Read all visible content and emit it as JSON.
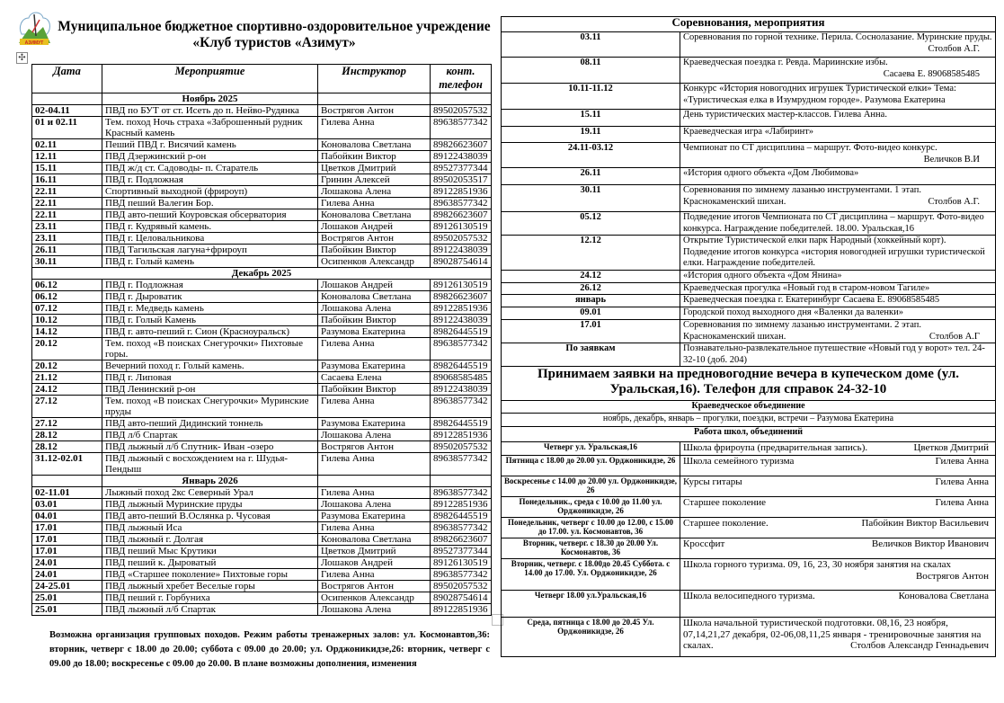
{
  "header": {
    "logo_text": "АЗИМУТ",
    "title_line1": "Муниципальное бюджетное спортивно-оздоровительное учреждение",
    "title_line2": "«Клуб туристов «Азимут»",
    "move_icon": "move-handle-icon"
  },
  "schedule": {
    "columns": [
      "Дата",
      "Мероприятие",
      "Инструктор",
      "конт. телефон"
    ],
    "rows": [
      {
        "month": "Ноябрь 2025"
      },
      {
        "date": "02-04.11",
        "event": "ПВД по БУТ от ст. Исеть до п. Нейво-Рудянка",
        "instructor": "Вострягов Антон",
        "phone": "89502057532"
      },
      {
        "date": "01 и 02.11",
        "event": "Тем. поход Ночь страха «Заброшенный рудник Красный камень",
        "instructor": "Гилева Анна",
        "phone": "89638577342"
      },
      {
        "date": "02.11",
        "event": "Пеший ПВД г. Висячий камень",
        "instructor": "Коновалова Светлана",
        "phone": "89826623607"
      },
      {
        "date": "12.11",
        "event": "ПВД Дзержинский р-он",
        "instructor": "Пабойкин Виктор",
        "phone": "89122438039"
      },
      {
        "date": "15.11",
        "event": "ПВД ж/д ст. Садоводы- п. Старатель",
        "instructor": "Цветков Дмитрий",
        "phone": "89527377344"
      },
      {
        "date": "16.11",
        "event": "ПВД г. Подложная",
        "instructor": "Гринин Алексей",
        "phone": "89502053517"
      },
      {
        "date": "22.11",
        "event": "Спортивный выходной (фрироуп)",
        "instructor": "Лошакова Алена",
        "phone": "89122851936"
      },
      {
        "date": "22.11",
        "event": "ПВД пеший Валегин Бор.",
        "instructor": "Гилева Анна",
        "phone": "89638577342"
      },
      {
        "date": "22.11",
        "event": "ПВД авто-пеший Коуровская обсерватория",
        "instructor": "Коновалова Светлана",
        "phone": "89826623607"
      },
      {
        "date": "23.11",
        "event": "ПВД г. Кудрявый камень.",
        "instructor": "Лошаков Андрей",
        "phone": "89126130519"
      },
      {
        "date": "23.11",
        "event": "ПВД г. Целовальникова",
        "instructor": "Вострягов Антон",
        "phone": "89502057532"
      },
      {
        "date": "26.11",
        "event": "ПВД Тагильская лагуна+фрироуп",
        "instructor": "Пабойкин Виктор",
        "phone": "89122438039"
      },
      {
        "date": "30.11",
        "event": "ПВД г. Голый камень",
        "instructor": "Осипенков Александр",
        "phone": "89028754614"
      },
      {
        "month": "Декабрь 2025",
        "full": true
      },
      {
        "date": "06.12",
        "event": "ПВД г. Подложная",
        "instructor": "Лошаков Андрей",
        "phone": "89126130519"
      },
      {
        "date": "06.12",
        "event": "ПВД г. Дыроватик",
        "instructor": "Коновалова Светлана",
        "phone": "89826623607"
      },
      {
        "date": "07.12",
        "event": "ПВД г. Медведь камень",
        "instructor": "Лошакова Алена",
        "phone": "89122851936"
      },
      {
        "date": "10.12",
        "event": "ПВД г. Голый Камень",
        "instructor": "Пабойкин Виктор",
        "phone": "89122438039"
      },
      {
        "date": "14.12",
        "event": "ПВД г.  авто-пеший г. Сион (Красноуральск)",
        "instructor": "Разумова Екатерина",
        "phone": "89826445519"
      },
      {
        "date": "20.12",
        "event": "Тем. поход «В поисках Снегурочки» Пихтовые горы.",
        "instructor": "Гилева Анна",
        "phone": "89638577342"
      },
      {
        "date": "20.12",
        "event": "Вечерний поход г. Голый камень.",
        "instructor": "Разумова Екатерина",
        "phone": "89826445519"
      },
      {
        "date": "21.12",
        "event": "ПВД г. Липовая",
        "instructor": "Сасаева Елена",
        "phone": "89068585485"
      },
      {
        "date": "24.12",
        "event": "ПВД Ленинский р-он",
        "instructor": "Пабойкин Виктор",
        "phone": "89122438039"
      },
      {
        "date": "27.12",
        "event": "Тем. поход «В поисках Снегурочки» Муринские пруды",
        "instructor": "Гилева Анна",
        "phone": "89638577342"
      },
      {
        "date": "27.12",
        "event": "ПВД авто-пеший Дидинский тоннель",
        "instructor": "Разумова Екатерина",
        "phone": "89826445519"
      },
      {
        "date": "28.12",
        "event": "ПВД л/б Спартак",
        "instructor": "Лошакова Алена",
        "phone": "89122851936"
      },
      {
        "date": "28.12",
        "event": "ПВД лыжный л/б Спутник- Иван -озеро",
        "instructor": "Вострягов Антон",
        "phone": "89502057532"
      },
      {
        "date": "31.12-02.01",
        "event": "ПВД лыжный с восхождением на г. Шудья-Пендыш",
        "instructor": "Гилева Анна",
        "phone": "89638577342"
      },
      {
        "month": "Январь 2026"
      },
      {
        "date": "02-11.01",
        "event": "Лыжный поход 2кс Северный Урал",
        "instructor": "Гилева Анна",
        "phone": "89638577342"
      },
      {
        "date": "03.01",
        "event": "ПВД лыжный Муринские пруды",
        "instructor": "Лошакова Алена",
        "phone": "89122851936"
      },
      {
        "date": "04.01",
        "event": "ПВД авто-пеший В.Ослянка р. Чусовая",
        "instructor": "Разумова Екатерина",
        "phone": "89826445519"
      },
      {
        "date": "17.01",
        "event": "ПВД лыжный Иса",
        "instructor": "Гилева Анна",
        "phone": "89638577342"
      },
      {
        "date": "17.01",
        "event": "ПВД лыжный г. Долгая",
        "instructor": "Коновалова Светлана",
        "phone": "89826623607"
      },
      {
        "date": "17.01",
        "event": "ПВД пеший Мыс Крутики",
        "instructor": "Цветков Дмитрий",
        "phone": "89527377344"
      },
      {
        "date": "24.01",
        "event": "ПВД пеший к. Дыроватый",
        "instructor": "Лошаков Андрей",
        "phone": "89126130519"
      },
      {
        "date": "24.01",
        "event": "ПВД «Старшее поколение» Пихтовые горы",
        "instructor": "Гилева Анна",
        "phone": "89638577342"
      },
      {
        "date": "24-25.01",
        "event": "ПВД лыжный хребет Веселые горы",
        "instructor": "Вострягов Антон",
        "phone": "89502057532"
      },
      {
        "date": "25.01",
        "event": "ПВД пеший г. Горбуниха",
        "instructor": "Осипенков Александр",
        "phone": "89028754614"
      },
      {
        "date": "25.01",
        "event": "ПВД лыжный л/б Спартак",
        "instructor": "Лошакова Алена",
        "phone": "89122851936"
      }
    ]
  },
  "note": "Возможна организация групповых походов. Режим работы тренажерных залов: ул. Космонавтов,36: вторник, четверг с 18.00 до 20.00; суббота с 09.00 до 20.00; ул. Орджоникидзе,26: вторник, четверг с 09.00 до 18.00; воскресенье с 09.00 до 20.00. В плане возможны дополнения, изменения",
  "events": {
    "title": "Соревнования, мероприятия",
    "rows": [
      {
        "date": "03.11",
        "text": "Соревнования по горной технике. Перила. Соснолазание. Муринские пруды.",
        "who": "Столбов А.Г."
      },
      {
        "date": "08.11",
        "text": "Краеведческая поездка г. Ревда. Мариинские избы.",
        "who": "Сасаева Е. 89068585485"
      },
      {
        "date": "10.11-11.12",
        "text": "Конкурс «История новогодних игрушек Туристической елки» Тема: «Туристическая елка в Изумрудном городе».    Разумова Екатерина"
      },
      {
        "date": "15.11",
        "text": "День туристических мастер-классов. Гилева Анна."
      },
      {
        "date": "19.11",
        "text": "Краеведческая игра «Лабиринт»"
      },
      {
        "date": "24.11-03.12",
        "text": "Чемпионат по СТ дисциплина – маршрут. Фото-видео конкурс.",
        "who": "Величков В.И"
      },
      {
        "date": "26.11",
        "text": "«История одного объекта «Дом Любимова»"
      },
      {
        "date": "30.11",
        "text": "Соревнования по зимнему лазанью инструментами. 1 этап. Краснокаменский шихан.",
        "who": "Столбов А.Г."
      },
      {
        "date": "05.12",
        "text": " Подведение итогов Чемпионата по СТ дисциплина – маршрут. Фото-видео конкурса. Награждение победителей.  18.00. Уральская,16"
      },
      {
        "date": "12.12",
        "text": "Открытие Туристической елки парк Народный (хоккейный корт). Подведение итогов конкурса «история новогодней игрушки туристической елки. Награждение победителей."
      },
      {
        "date": "24.12",
        "text": "«История одного объекта «Дом Янина»"
      },
      {
        "date": "26.12",
        "text": "Краеведческая прогулка «Новый год в старом-новом Тагиле»"
      },
      {
        "date": "январь",
        "text": "Краеведческая поездка г. Екатеринбург    Сасаева Е. 89068585485"
      },
      {
        "date": "09.01",
        "text": "Городской поход выходного дня «Валенки да валенки»"
      },
      {
        "date": "17.01",
        "text": "Соревнования по зимнему лазанью инструментами. 2 этап. Краснокаменский шихан.",
        "who": "Столбов А.Г"
      },
      {
        "date": "По заявкам",
        "text": "Познавательно-развлекательное путешествие «Новый год у ворот» тел. 24-32-10 (доб. 204)"
      }
    ],
    "announcement": "Принимаем заявки на предновогодние вечера в купеческом доме (ул. Уральская,16).  Телефон для справок 24-32-10",
    "kraeved_title": "Краеведческое объединение",
    "kraeved_text": "ноябрь, декабрь, январь – прогулки, поездки, встречи – Разумова Екатерина",
    "schools_title": "Работа школ, объединений",
    "schools": [
      {
        "when": "Четверг ул. Уральская,16",
        "text": "Школа фрироупа (предварительная запись).",
        "who": "Цветков Дмитрий"
      },
      {
        "when": "Пятница с 18.00 до 20.00 ул. Орджоникидзе, 26",
        "text": "Школа семейного туризма",
        "who": "Гилева Анна"
      },
      {
        "when": "Воскресенье с 14.00 до 20.00 ул. Орджоникидзе, 26",
        "text": "Курсы гитары",
        "who": "Гилева Анна"
      },
      {
        "when": "Понедельник., среда с 10.00 до 11.00 ул. Орджоникидзе, 26",
        "text": "Старшее поколение",
        "who": "Гилева Анна"
      },
      {
        "when": "Понедельник, четверг с 10.00 до 12.00, с 15.00 до 17.00. ул. Космонавтов, 36",
        "text": "Старшее поколение.",
        "who": "Пабойкин Виктор Васильевич"
      },
      {
        "when": "Вторник, четверг. с 18.30 до 20.00 Ул. Космонавтов, 36",
        "text": "Кроссфит",
        "who": "Величков Виктор Иванович"
      },
      {
        "when": "Вторник, четверг. с 18.00до 20.45 Суббота.  с 14.00 до 17.00.  Ул. Орджоникидзе, 26",
        "text": "Школа горного туризма. 09, 16, 23, 30 ноября занятия на скалах",
        "who": "Вострягов Антон"
      },
      {
        "when": "Четверг 18.00   ул.Уральская,16",
        "text": "Школа велосипедного туризма.",
        "who": "Коновалова Светлана"
      },
      {
        "when": "Среда, пятница с 18.00 до 20.45 Ул. Орджоникидзе, 26",
        "text": "Школа начальной туристической подготовки. 08,16, 23 ноября, 07,14,21,27 декабря, 02-06,08,11,25 января - тренировочные занятия на скалах.",
        "who": "Столбов Александр Геннадьевич"
      }
    ]
  }
}
